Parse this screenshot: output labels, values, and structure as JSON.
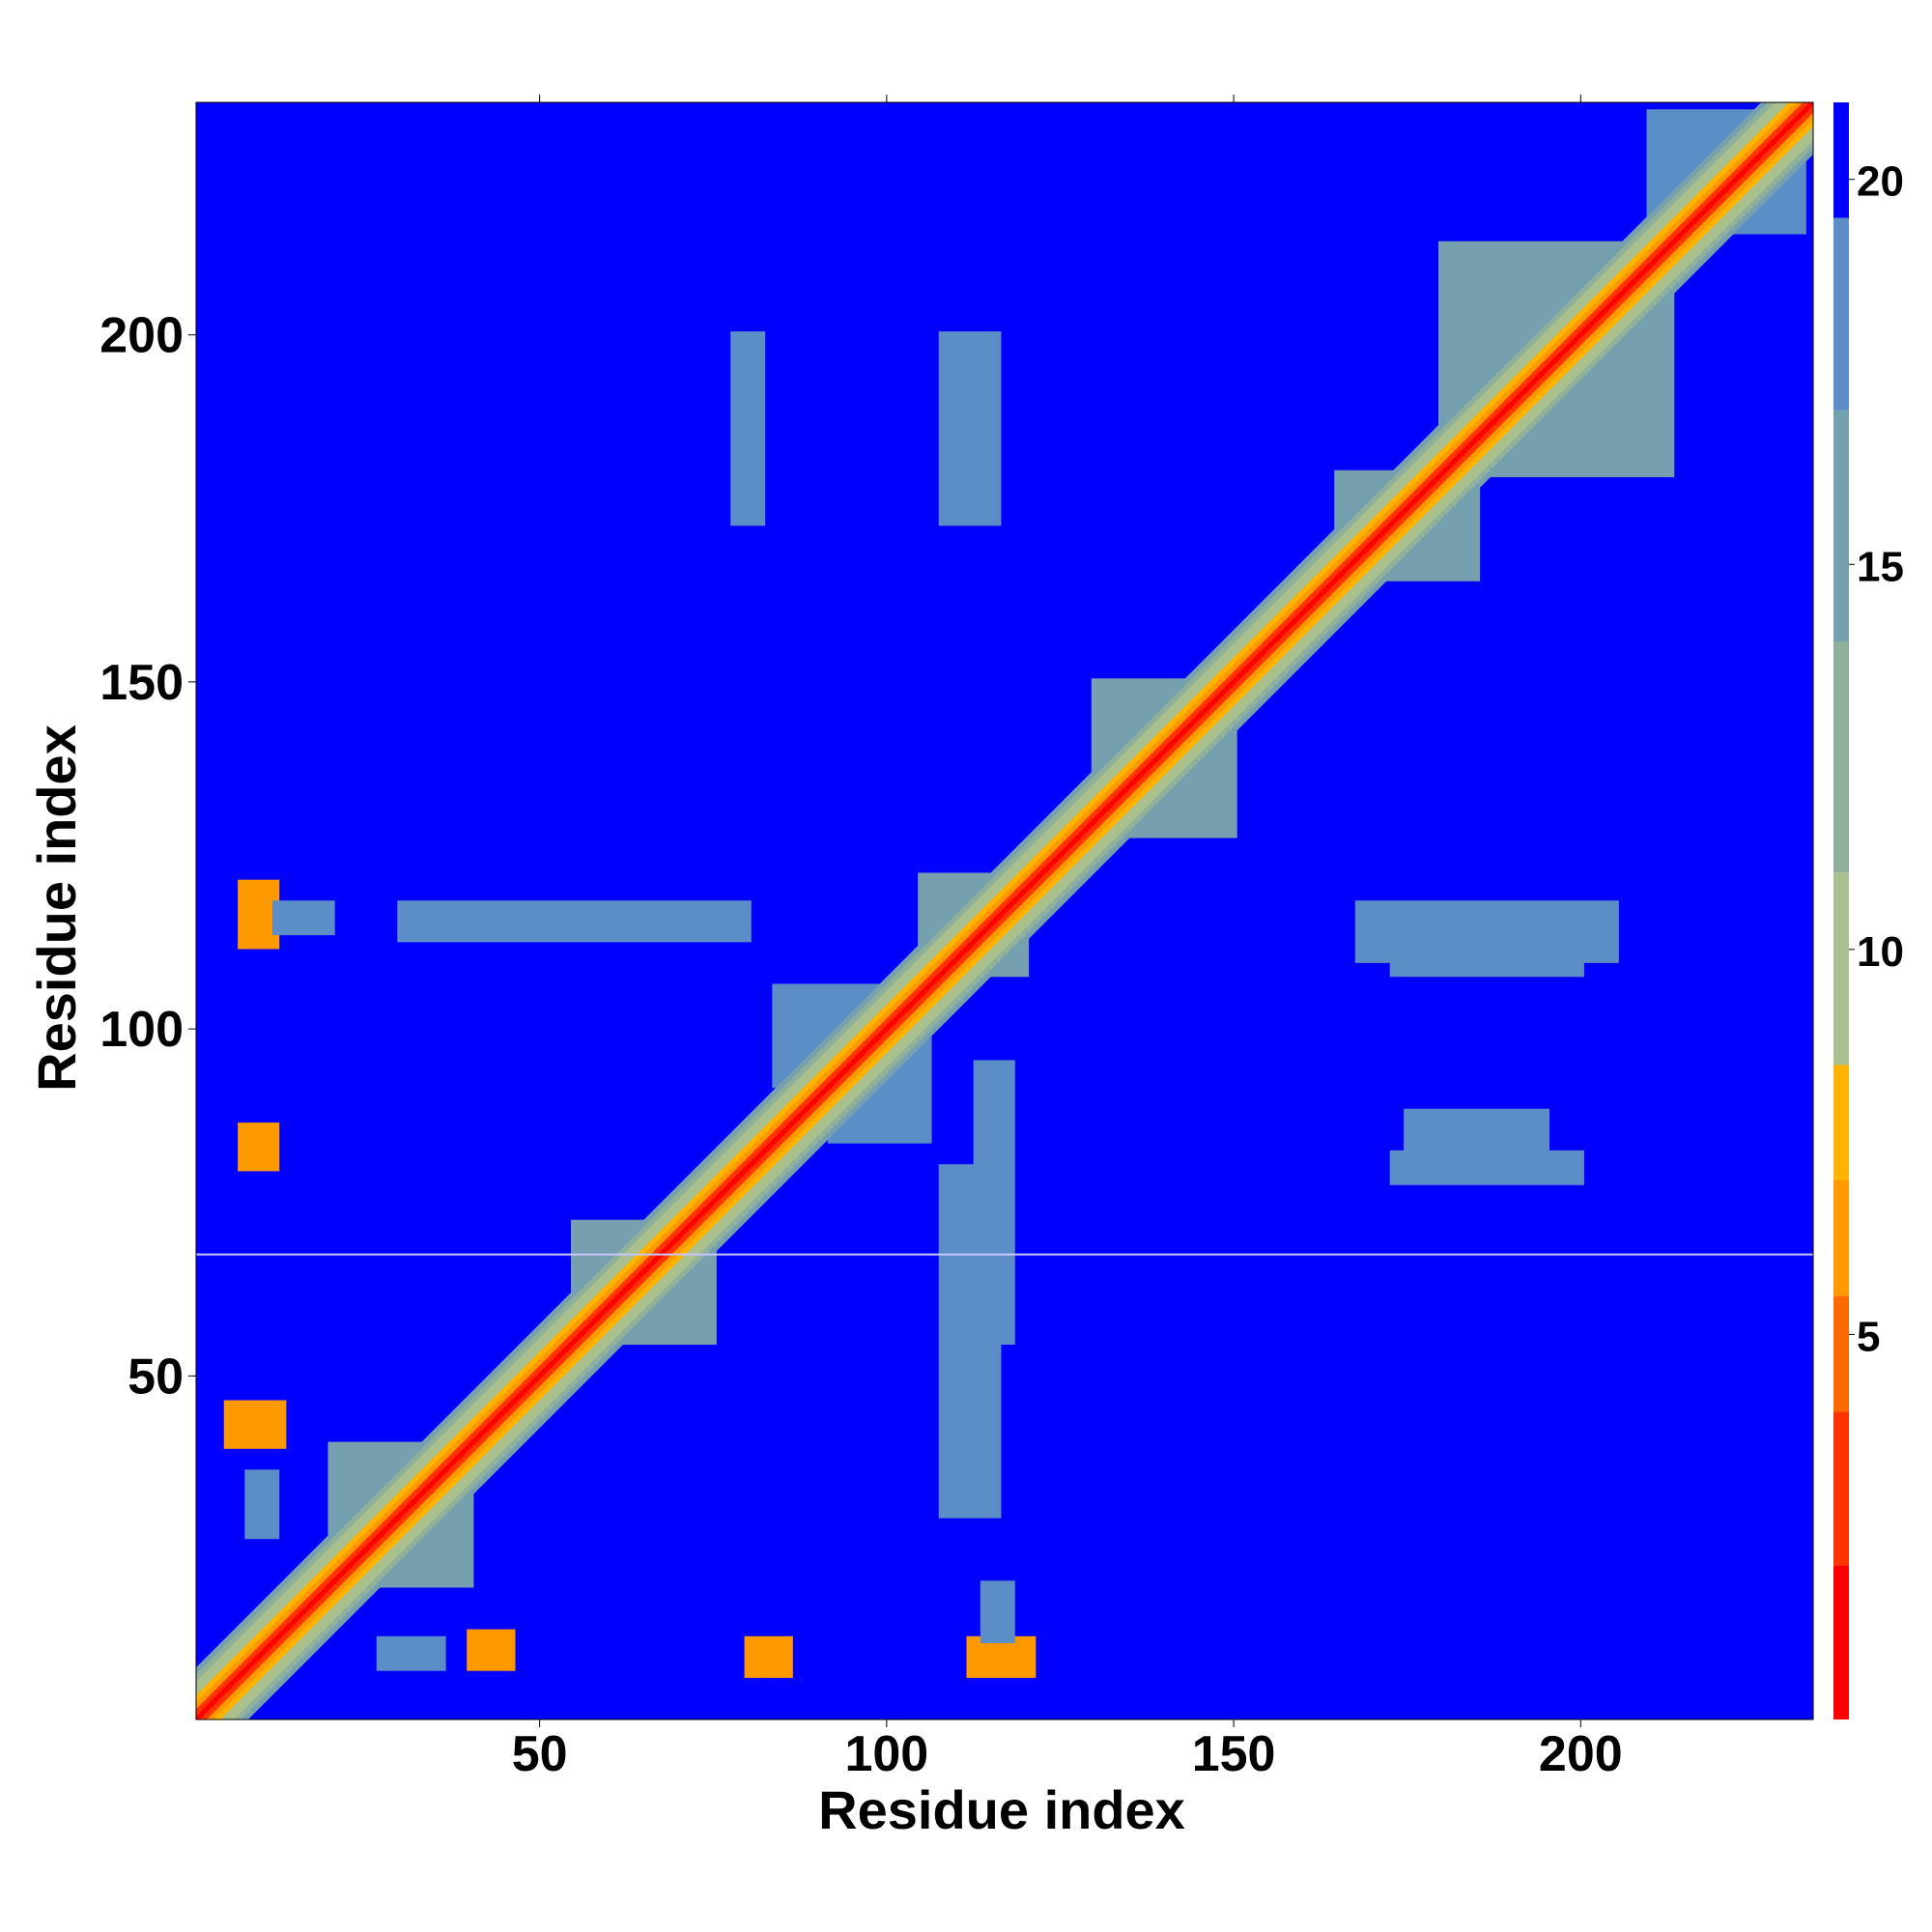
{
  "chart_data": {
    "type": "heatmap",
    "title": "",
    "xlabel": "Residue index",
    "ylabel": "Residue index",
    "xlim": [
      1,
      233
    ],
    "ylim": [
      1,
      233
    ],
    "x_ticks": [
      50,
      100,
      150,
      200
    ],
    "y_ticks": [
      50,
      100,
      150,
      200
    ],
    "colorbar": {
      "ticks": [
        5,
        10,
        15,
        20
      ],
      "range": [
        0,
        21
      ],
      "placement": "right",
      "colors": [
        "#ff0000",
        "#ff3300",
        "#ff6a00",
        "#ff9900",
        "#ffb300",
        "#a9c08e",
        "#8fb09b",
        "#74a0b0",
        "#5b8ec6",
        "#0000ff"
      ],
      "bounds": [
        0,
        2,
        4,
        5.5,
        7,
        8.5,
        11,
        14,
        17,
        19.5,
        21
      ]
    },
    "background_value": 21,
    "diagonal_band": [
      {
        "offset": 0,
        "value": 1
      },
      {
        "offset": 1,
        "value": 3.5
      },
      {
        "offset": 2,
        "value": 6
      },
      {
        "offset": 3,
        "value": 7.5
      },
      {
        "offset": 4,
        "value": 9
      },
      {
        "offset": 5,
        "value": 10.5
      },
      {
        "offset": 6,
        "value": 13
      },
      {
        "offset": 7,
        "value": 15.5
      }
    ],
    "contact_patches": [
      {
        "x": [
          7,
          12
        ],
        "y": [
          112,
          121
        ],
        "value": 6.5
      },
      {
        "x": [
          12,
          20
        ],
        "y": [
          114,
          118
        ],
        "value": 18
      },
      {
        "x": [
          7,
          12
        ],
        "y": [
          80,
          86
        ],
        "value": 6.5
      },
      {
        "x": [
          5,
          13
        ],
        "y": [
          40,
          46
        ],
        "value": 6.5
      },
      {
        "x": [
          8,
          12
        ],
        "y": [
          27,
          36
        ],
        "value": 18
      },
      {
        "x": [
          40,
          46
        ],
        "y": [
          8,
          13
        ],
        "value": 6.5
      },
      {
        "x": [
          27,
          36
        ],
        "y": [
          8,
          12
        ],
        "value": 18
      },
      {
        "x": [
          80,
          86
        ],
        "y": [
          7,
          12
        ],
        "value": 6.5
      },
      {
        "x": [
          112,
          121
        ],
        "y": [
          7,
          12
        ],
        "value": 6.5
      },
      {
        "x": [
          114,
          118
        ],
        "y": [
          12,
          20
        ],
        "value": 18
      },
      {
        "x": [
          84,
          105
        ],
        "y": [
          92,
          106
        ],
        "value": 17
      },
      {
        "x": [
          92,
          106
        ],
        "y": [
          84,
          105
        ],
        "value": 17
      },
      {
        "x": [
          105,
          120
        ],
        "y": [
          108,
          122
        ],
        "value": 16
      },
      {
        "x": [
          55,
          75
        ],
        "y": [
          55,
          72
        ],
        "value": 16
      },
      {
        "x": [
          180,
          213
        ],
        "y": [
          180,
          213
        ],
        "value": 15
      },
      {
        "x": [
          165,
          185
        ],
        "y": [
          165,
          180
        ],
        "value": 14
      },
      {
        "x": [
          130,
          150
        ],
        "y": [
          128,
          150
        ],
        "value": 15
      },
      {
        "x": [
          20,
          40
        ],
        "y": [
          20,
          40
        ],
        "value": 15
      },
      {
        "x": [
          78,
          82
        ],
        "y": [
          173,
          200
        ],
        "value": 18.5
      },
      {
        "x": [
          108,
          116
        ],
        "y": [
          173,
          200
        ],
        "value": 18.5
      },
      {
        "x": [
          173,
          200
        ],
        "y": [
          78,
          82
        ],
        "value": 18.5
      },
      {
        "x": [
          173,
          200
        ],
        "y": [
          108,
          116
        ],
        "value": 18.5
      },
      {
        "x": [
          175,
          195
        ],
        "y": [
          82,
          88
        ],
        "value": 18.5
      },
      {
        "x": [
          168,
          205
        ],
        "y": [
          110,
          118
        ],
        "value": 18.5
      },
      {
        "x": [
          30,
          80
        ],
        "y": [
          113,
          118
        ],
        "value": 18.5
      },
      {
        "x": [
          113,
          118
        ],
        "y": [
          55,
          95
        ],
        "value": 18.5
      },
      {
        "x": [
          108,
          116
        ],
        "y": [
          30,
          80
        ],
        "value": 18.5
      },
      {
        "x": [
          210,
          232
        ],
        "y": [
          215,
          232
        ],
        "value": 18
      }
    ],
    "horizontal_line_y": 67.5
  }
}
